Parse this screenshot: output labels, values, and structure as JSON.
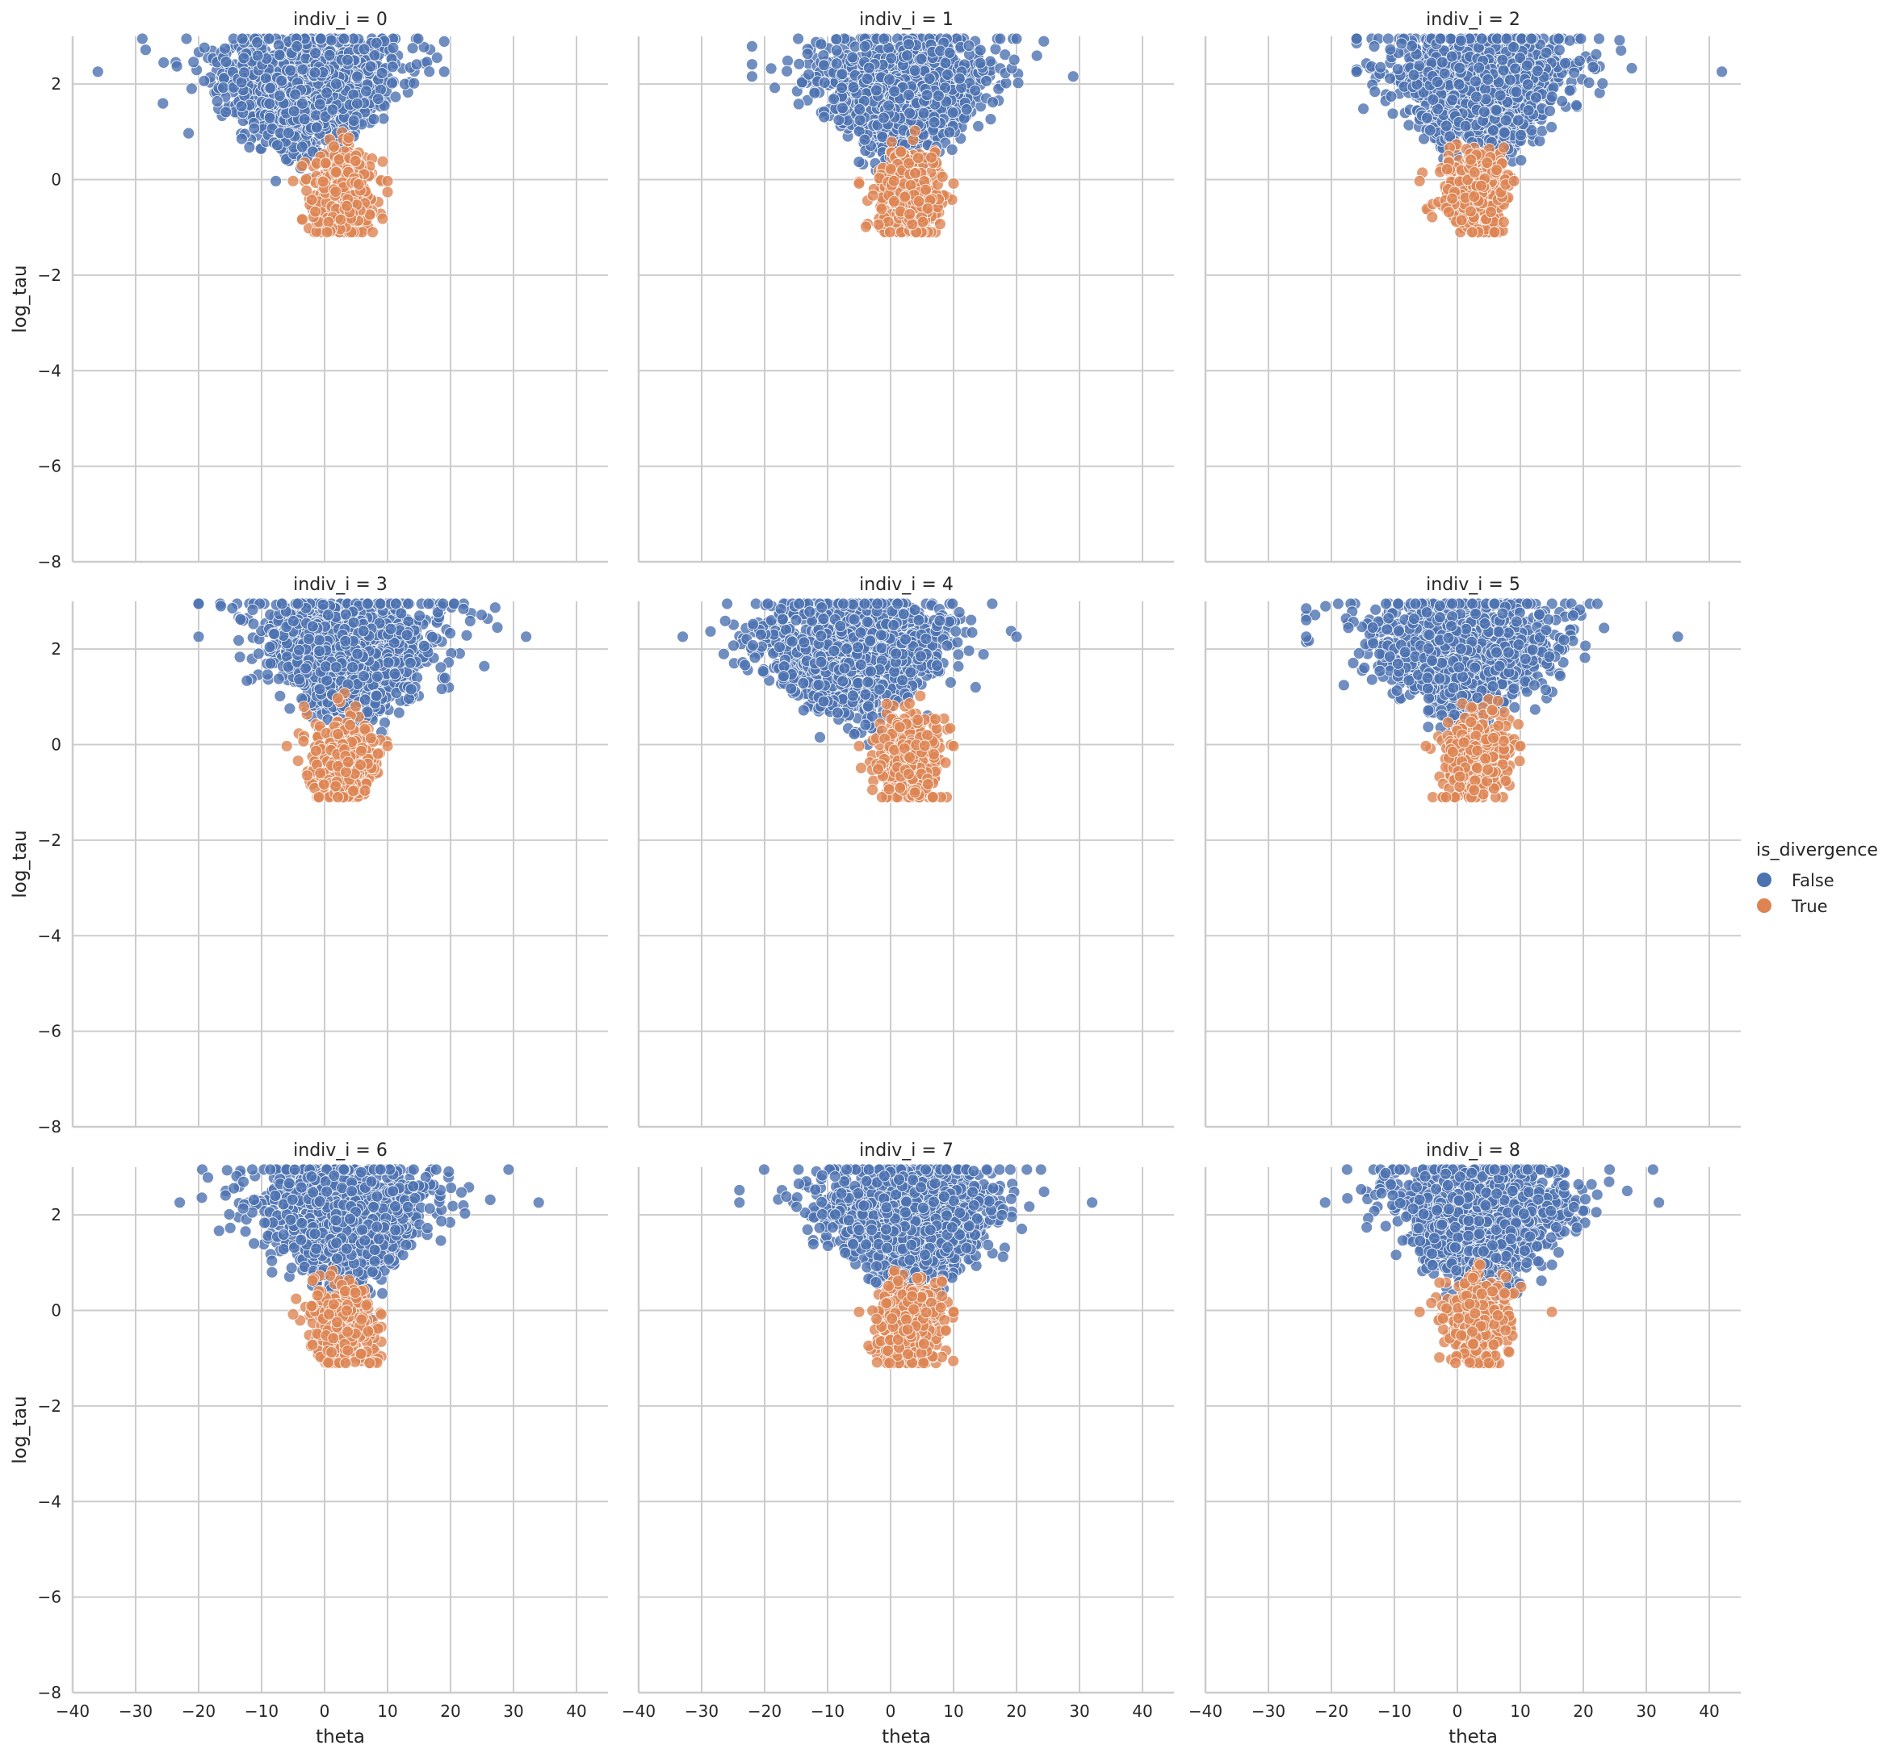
{
  "chart_data": {
    "type": "scatter",
    "layout": "facet-grid 3x3",
    "facet_variable": "indiv_i",
    "xlabel": "theta",
    "ylabel": "log_tau",
    "xlim": [
      -40,
      45
    ],
    "ylim": [
      -8,
      3
    ],
    "x_ticks": [
      "−40",
      "−30",
      "−20",
      "−10",
      "0",
      "10",
      "20",
      "30",
      "40"
    ],
    "x_tick_values": [
      -40,
      -30,
      -20,
      -10,
      0,
      10,
      20,
      30,
      40
    ],
    "y_ticks": [
      "−8",
      "−6",
      "−4",
      "−2",
      "0",
      "2"
    ],
    "y_tick_values": [
      -8,
      -6,
      -4,
      -2,
      0,
      2
    ],
    "grid": true,
    "colors": {
      "False": "#4c72b0",
      "True": "#dd8452",
      "grid": "#cccccc",
      "spine": "#cccccc"
    },
    "legend": {
      "title": "is_divergence",
      "placement": "right",
      "entries": [
        {
          "label": "False",
          "color": "#4c72b0"
        },
        {
          "label": "True",
          "color": "#dd8452"
        }
      ]
    },
    "panels": [
      {
        "title": "indiv_i = 0",
        "series": [
          {
            "name": "False",
            "center": [
              -3,
              1.9
            ],
            "spread": [
              9,
              0.6
            ],
            "x_range": [
              -36,
              19
            ],
            "y_range": [
              -0.95,
              2.95
            ]
          },
          {
            "name": "True",
            "center": [
              3,
              -0.3
            ],
            "spread": [
              2.5,
              0.45
            ],
            "x_range": [
              -5,
              10
            ],
            "y_range": [
              -1.1,
              1.75
            ]
          }
        ]
      },
      {
        "title": "indiv_i = 1",
        "series": [
          {
            "name": "False",
            "center": [
              2,
              1.8
            ],
            "spread": [
              8,
              0.6
            ],
            "x_range": [
              -22,
              29
            ],
            "y_range": [
              -1.05,
              2.95
            ]
          },
          {
            "name": "True",
            "center": [
              3,
              -0.35
            ],
            "spread": [
              2.5,
              0.45
            ],
            "x_range": [
              -5,
              10
            ],
            "y_range": [
              -1.1,
              1.7
            ]
          }
        ]
      },
      {
        "title": "indiv_i = 2",
        "series": [
          {
            "name": "False",
            "center": [
              4,
              1.9
            ],
            "spread": [
              8.5,
              0.6
            ],
            "x_range": [
              -16,
              42
            ],
            "y_range": [
              -1.0,
              2.95
            ]
          },
          {
            "name": "True",
            "center": [
              3,
              -0.3
            ],
            "spread": [
              2.5,
              0.45
            ],
            "x_range": [
              -6,
              9
            ],
            "y_range": [
              -1.1,
              1.75
            ]
          }
        ]
      },
      {
        "title": "indiv_i = 3",
        "series": [
          {
            "name": "False",
            "center": [
              4,
              1.9
            ],
            "spread": [
              8.5,
              0.6
            ],
            "x_range": [
              -20,
              32
            ],
            "y_range": [
              -0.95,
              2.95
            ]
          },
          {
            "name": "True",
            "center": [
              3,
              -0.3
            ],
            "spread": [
              2.5,
              0.45
            ],
            "x_range": [
              -6,
              10
            ],
            "y_range": [
              -1.1,
              1.75
            ]
          }
        ]
      },
      {
        "title": "indiv_i = 4",
        "series": [
          {
            "name": "False",
            "center": [
              -6,
              1.9
            ],
            "spread": [
              9,
              0.6
            ],
            "x_range": [
              -33,
              20
            ],
            "y_range": [
              -1.05,
              2.95
            ]
          },
          {
            "name": "True",
            "center": [
              3,
              -0.3
            ],
            "spread": [
              2.5,
              0.45
            ],
            "x_range": [
              -5,
              10
            ],
            "y_range": [
              -1.1,
              1.55
            ]
          }
        ]
      },
      {
        "title": "indiv_i = 5",
        "series": [
          {
            "name": "False",
            "center": [
              1,
              1.9
            ],
            "spread": [
              9,
              0.6
            ],
            "x_range": [
              -24,
              35
            ],
            "y_range": [
              -1.0,
              2.95
            ]
          },
          {
            "name": "True",
            "center": [
              3,
              -0.3
            ],
            "spread": [
              2.5,
              0.45
            ],
            "x_range": [
              -5,
              10
            ],
            "y_range": [
              -1.1,
              1.75
            ]
          }
        ]
      },
      {
        "title": "indiv_i = 6",
        "series": [
          {
            "name": "False",
            "center": [
              3,
              1.9
            ],
            "spread": [
              8.5,
              0.6
            ],
            "x_range": [
              -23,
              34
            ],
            "y_range": [
              -1.05,
              2.95
            ]
          },
          {
            "name": "True",
            "center": [
              3,
              -0.35
            ],
            "spread": [
              2.5,
              0.45
            ],
            "x_range": [
              -5,
              9
            ],
            "y_range": [
              -1.1,
              1.75
            ]
          }
        ]
      },
      {
        "title": "indiv_i = 7",
        "series": [
          {
            "name": "False",
            "center": [
              3,
              1.9
            ],
            "spread": [
              8.5,
              0.6
            ],
            "x_range": [
              -24,
              32
            ],
            "y_range": [
              -1.0,
              2.95
            ]
          },
          {
            "name": "True",
            "center": [
              3,
              -0.3
            ],
            "spread": [
              2.5,
              0.45
            ],
            "x_range": [
              -5,
              10
            ],
            "y_range": [
              -1.1,
              1.75
            ]
          }
        ]
      },
      {
        "title": "indiv_i = 8",
        "series": [
          {
            "name": "False",
            "center": [
              4,
              1.9
            ],
            "spread": [
              8.5,
              0.6
            ],
            "x_range": [
              -21,
              32
            ],
            "y_range": [
              -1.0,
              2.95
            ]
          },
          {
            "name": "True",
            "center": [
              3,
              -0.3
            ],
            "spread": [
              2.5,
              0.45
            ],
            "x_range": [
              -6,
              15
            ],
            "y_range": [
              -1.1,
              1.75
            ]
          }
        ]
      }
    ]
  }
}
